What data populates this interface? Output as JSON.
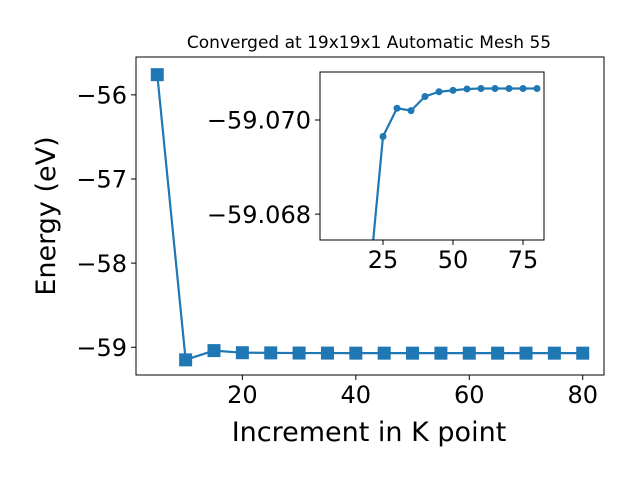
{
  "chart_data": [
    {
      "type": "line",
      "title": "Converged at 19x19x1 Automatic Mesh 55",
      "xlabel": "Increment in K point",
      "ylabel": "Energy (eV)",
      "xlim": [
        1.25,
        83.75
      ],
      "ylim": [
        -59.33,
        -55.55
      ],
      "xticks": [
        "20",
        "40",
        "60",
        "80"
      ],
      "yticks": [
        "−56",
        "−57",
        "−58",
        "−59"
      ],
      "marker": "square",
      "color": "#1f77b4",
      "series": [
        {
          "x": [
            5,
            10,
            15,
            20,
            25,
            30,
            35,
            40,
            45,
            50,
            55,
            60,
            65,
            70,
            75,
            80
          ],
          "y": [
            -55.76,
            -59.15,
            -59.04,
            -59.065,
            -59.067,
            -59.069,
            -59.0695,
            -59.0702,
            -59.0703,
            -59.0704,
            -59.0704,
            -59.0704,
            -59.0704,
            -59.0704,
            -59.0704,
            -59.0704
          ]
        }
      ]
    },
    {
      "type": "line",
      "title": "",
      "xlabel": "",
      "ylabel": "",
      "xlim": [
        2.5,
        82.5
      ],
      "ylim": [
        -59.06745,
        -59.07102
      ],
      "xticks": [
        "25",
        "50",
        "75"
      ],
      "yticks": [
        "−59.070",
        "−59.068"
      ],
      "marker": "circle",
      "color": "#1f77b4",
      "series": [
        {
          "x": [
            20,
            25,
            30,
            35,
            40,
            45,
            50,
            55,
            60,
            65,
            70,
            75,
            80
          ],
          "y": [
            -59.0665,
            -59.06965,
            -59.07025,
            -59.0702,
            -59.0705,
            -59.0706,
            -59.07063,
            -59.07066,
            -59.07067,
            -59.07067,
            -59.07067,
            -59.07067,
            -59.07067
          ]
        }
      ]
    }
  ]
}
